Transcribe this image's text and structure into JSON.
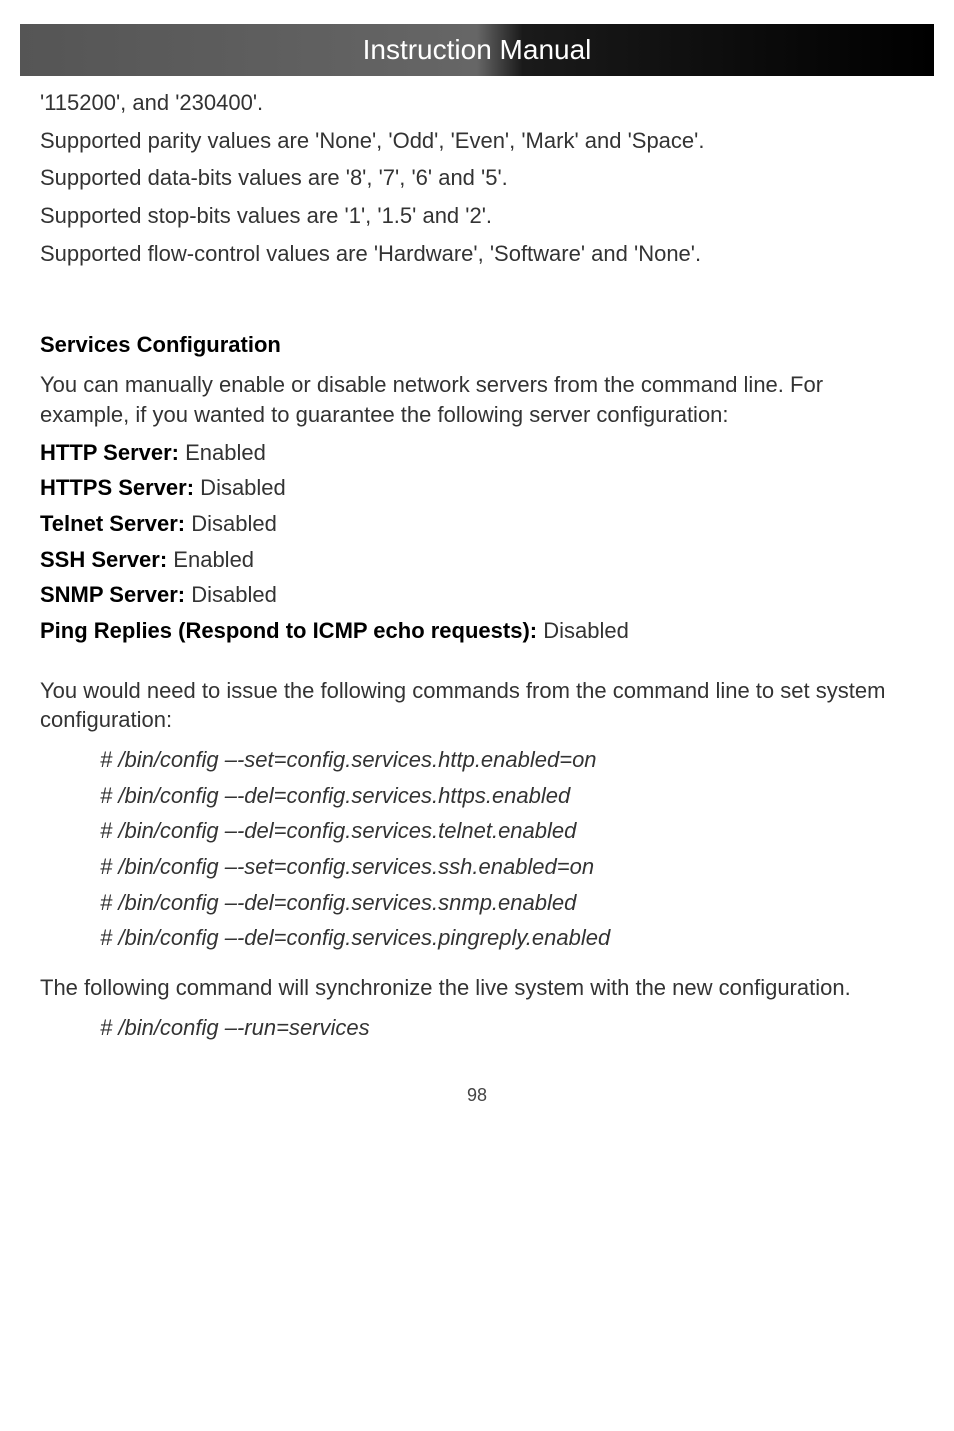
{
  "header": {
    "title": "Instruction Manual",
    "bg_gradient_left": "#555555",
    "bg_gradient_right": "#000000",
    "text_color": "#ffffff",
    "font_size_pt": 20
  },
  "body": {
    "font_size_pt": 16,
    "text_color": "#333333",
    "bold_color": "#000000"
  },
  "intro_lines": [
    "'115200', and '230400'.",
    "Supported parity values are 'None', 'Odd', 'Even', 'Mark' and 'Space'.",
    "Supported data-bits values are '8', '7', '6' and '5'.",
    "Supported stop-bits values are '1', '1.5' and '2'.",
    "Supported flow-control values are 'Hardware', 'Software' and 'None'."
  ],
  "services": {
    "heading": "Services Configuration",
    "description": "You can manually enable or disable network servers from the command line. For example,  if you wanted to guarantee the following server configuration:",
    "items": [
      {
        "key": "HTTP Server:",
        "value": " Enabled"
      },
      {
        "key": "HTTPS Server:",
        "value": " Disabled"
      },
      {
        "key": "Telnet Server:",
        "value": " Disabled"
      },
      {
        "key": "SSH Server:",
        "value": " Enabled"
      },
      {
        "key": "SNMP Server:",
        "value": " Disabled"
      },
      {
        "key": "Ping Replies (Respond to ICMP echo requests):",
        "value": " Disabled"
      }
    ]
  },
  "commands_intro": "You would need to issue the following commands from the command line to set system configuration:",
  "commands": [
    "# /bin/config –-set=config.services.http.enabled=on",
    "# /bin/config –-del=config.services.https.enabled",
    "# /bin/config –-del=config.services.telnet.enabled",
    "# /bin/config –-set=config.services.ssh.enabled=on",
    "# /bin/config –-del=config.services.snmp.enabled",
    "# /bin/config –-del=config.services.pingreply.enabled"
  ],
  "sync_text": "The following command will synchronize the live system with the new configuration.",
  "sync_cmd": "# /bin/config –-run=services",
  "page_number": "98"
}
